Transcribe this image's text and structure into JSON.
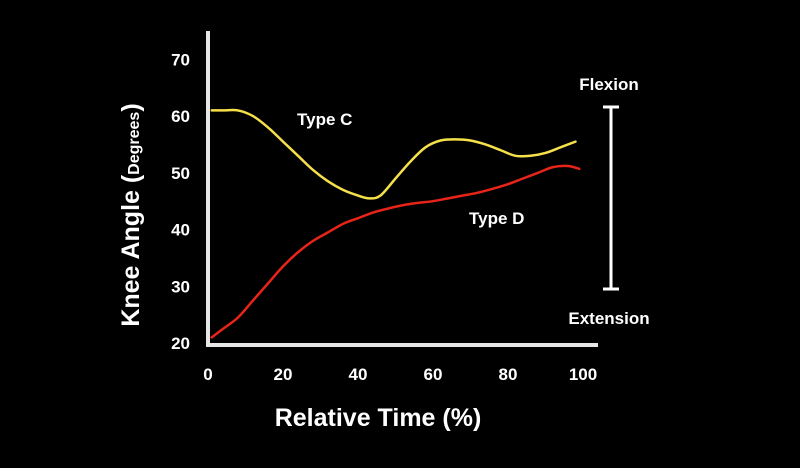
{
  "chart_data": {
    "type": "line",
    "xlabel": "Relative Time (%)",
    "ylabel_main": "Knee Angle ",
    "ylabel_paren_open": "(",
    "ylabel_unit": "Degrees",
    "ylabel_paren_close": ")",
    "xlim": [
      0,
      100
    ],
    "ylim": [
      20,
      75
    ],
    "xticks": [
      0,
      20,
      40,
      60,
      80,
      100
    ],
    "yticks": [
      20,
      30,
      40,
      50,
      60,
      70
    ],
    "grid": false,
    "series": [
      {
        "name": "Type C",
        "color": "#f5e04a",
        "x": [
          1,
          4,
          8,
          12,
          16,
          20,
          24,
          28,
          32,
          36,
          40,
          43,
          46,
          50,
          54,
          58,
          62,
          66,
          70,
          74,
          78,
          82,
          86,
          90,
          94,
          98
        ],
        "y": [
          61,
          61,
          61,
          60,
          58,
          55.5,
          53,
          50.5,
          48.5,
          47,
          46,
          45.5,
          46,
          49,
          52,
          54.5,
          55.7,
          55.9,
          55.7,
          55,
          54,
          53,
          53,
          53.5,
          54.5,
          55.5
        ]
      },
      {
        "name": "Type D",
        "color": "#e82419",
        "x": [
          1,
          4,
          8,
          12,
          16,
          20,
          24,
          28,
          32,
          36,
          40,
          44,
          48,
          52,
          56,
          60,
          64,
          68,
          72,
          76,
          80,
          84,
          88,
          92,
          96,
          99
        ],
        "y": [
          21,
          22.5,
          24.5,
          27.5,
          30.5,
          33.5,
          36,
          38,
          39.5,
          41,
          42,
          43,
          43.7,
          44.3,
          44.7,
          45,
          45.5,
          46,
          46.5,
          47.2,
          48,
          49,
          50,
          51,
          51.2,
          50.7
        ]
      }
    ],
    "annotations": {
      "flexion": "Flexion",
      "extension": "Extension"
    }
  }
}
